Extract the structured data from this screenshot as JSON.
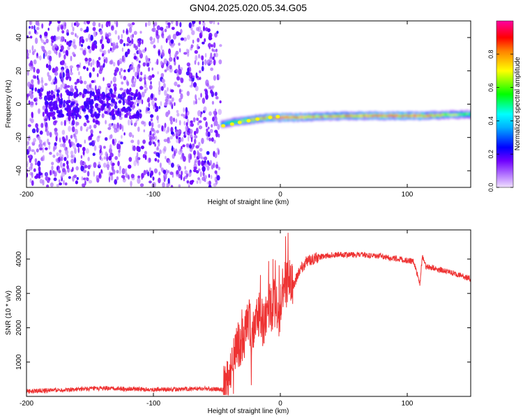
{
  "title": "GN04.2025.020.05.34.G05",
  "chart_data": [
    {
      "type": "heatmap",
      "xlabel": "Height of straight line (km)",
      "ylabel": "Frequency (Hz)",
      "xlim": [
        -200,
        150
      ],
      "ylim": [
        -50,
        50
      ],
      "xticks": [
        -200,
        -100,
        0,
        100
      ],
      "yticks": [
        -40,
        -20,
        0,
        20,
        40
      ],
      "colorbar": {
        "label": "Normalized spectral amplitude",
        "ticks": [
          0.0,
          0.2,
          0.4,
          0.6,
          0.8
        ],
        "range": [
          0,
          1
        ],
        "colormap": [
          "#f0e0ff",
          "#7000ff",
          "#0000ff",
          "#00ffff",
          "#00ff00",
          "#ffff00",
          "#ff8000",
          "#ff0000",
          "#ff00a0"
        ]
      },
      "noise_region": {
        "x_range": [
          -200,
          -47
        ],
        "freq_range": [
          -50,
          50
        ],
        "amplitude_range": [
          0.0,
          0.2
        ]
      },
      "signal_track": [
        {
          "x": -47,
          "freq": -12,
          "amplitude": 0.35
        },
        {
          "x": -40,
          "freq": -11,
          "amplitude": 0.55
        },
        {
          "x": -30,
          "freq": -10,
          "amplitude": 0.7
        },
        {
          "x": -20,
          "freq": -9,
          "amplitude": 0.75
        },
        {
          "x": -10,
          "freq": -8,
          "amplitude": 0.8
        },
        {
          "x": 0,
          "freq": -8,
          "amplitude": 0.95
        },
        {
          "x": 10,
          "freq": -8,
          "amplitude": 0.85
        },
        {
          "x": 30,
          "freq": -7.5,
          "amplitude": 0.75
        },
        {
          "x": 50,
          "freq": -7,
          "amplitude": 0.78
        },
        {
          "x": 70,
          "freq": -7,
          "amplitude": 0.85
        },
        {
          "x": 90,
          "freq": -7,
          "amplitude": 0.9
        },
        {
          "x": 110,
          "freq": -7,
          "amplitude": 0.85
        },
        {
          "x": 130,
          "freq": -6.5,
          "amplitude": 0.7
        },
        {
          "x": 150,
          "freq": -6,
          "amplitude": 0.55
        }
      ]
    },
    {
      "type": "line",
      "xlabel": "Height of straight line (km)",
      "ylabel": "SNR (10 * v/v)",
      "xlim": [
        -200,
        150
      ],
      "ylim": [
        0,
        4850
      ],
      "xticks": [
        -200,
        -100,
        0,
        100
      ],
      "yticks": [
        1000,
        2000,
        3000,
        4000
      ],
      "color": "#ee3333",
      "series": [
        {
          "x": [
            -200,
            -180,
            -160,
            -140,
            -120,
            -100,
            -80,
            -60,
            -45,
            -40,
            -37,
            -34,
            -31,
            -28,
            -25,
            -22,
            -19,
            -16,
            -13,
            -10,
            -7,
            -4,
            -1,
            2,
            5,
            8,
            10,
            15,
            20,
            25,
            30,
            40,
            50,
            60,
            70,
            80,
            90,
            100,
            105,
            110,
            112,
            115,
            120,
            130,
            140,
            150
          ],
          "y": [
            150,
            180,
            210,
            230,
            220,
            200,
            210,
            230,
            200,
            500,
            1100,
            1500,
            1400,
            1800,
            2300,
            1700,
            2100,
            2500,
            2000,
            2700,
            2500,
            3000,
            2200,
            3100,
            3300,
            3400,
            3200,
            3700,
            3900,
            4000,
            4050,
            4120,
            4130,
            4130,
            4100,
            4080,
            4020,
            3960,
            3930,
            3300,
            4100,
            3770,
            3750,
            3650,
            3550,
            3420
          ]
        }
      ]
    }
  ]
}
